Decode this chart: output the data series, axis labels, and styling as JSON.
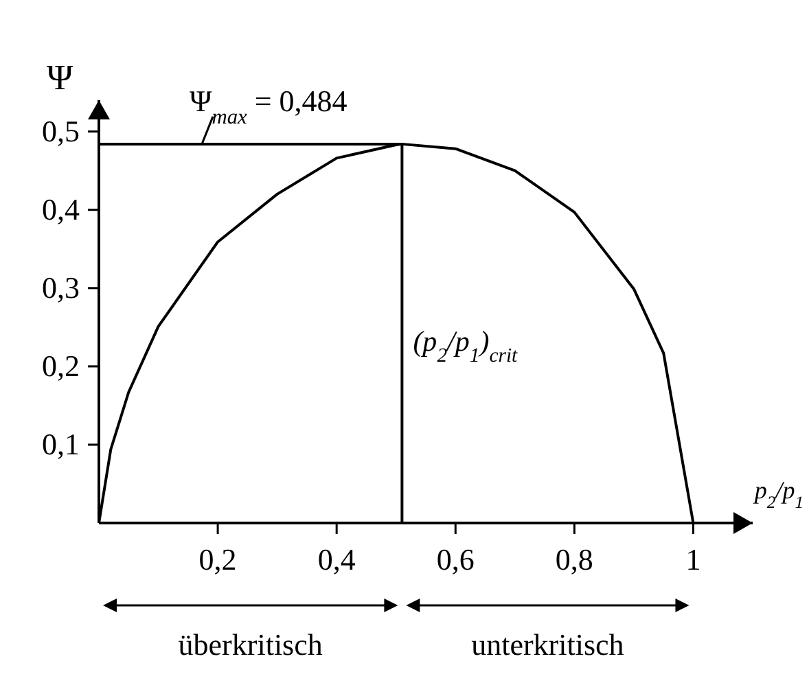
{
  "chart_data": {
    "type": "line",
    "ylabel": "Ψ",
    "xlabel": "p$_{2}$/p$_{1}$",
    "x": [
      0,
      0.02,
      0.05,
      0.1,
      0.2,
      0.3,
      0.4,
      0.5,
      0.51,
      0.6,
      0.7,
      0.8,
      0.9,
      0.95,
      1
    ],
    "series": [
      {
        "color": "#000000",
        "values": [
          0,
          0.094,
          0.167,
          0.251,
          0.359,
          0.42,
          0.466,
          0.483,
          0.484,
          0.478,
          0.45,
          0.397,
          0.299,
          0.217,
          0
        ]
      }
    ],
    "xlim": [
      0,
      1.1
    ],
    "ylim": [
      0,
      0.54
    ],
    "xticks": [
      {
        "value": 0.2,
        "label": "0,2"
      },
      {
        "value": 0.4,
        "label": "0,4"
      },
      {
        "value": 0.6,
        "label": "0,6"
      },
      {
        "value": 0.8,
        "label": "0,8"
      },
      1
    ],
    "yticks": [
      {
        "value": 0.1,
        "label": "0,1"
      },
      {
        "value": 0.2,
        "label": "0,2"
      },
      {
        "value": 0.3,
        "label": "0,3"
      },
      {
        "value": 0.4,
        "label": "0,4"
      },
      {
        "value": 0.5,
        "label": "0,5"
      }
    ],
    "ref_lines": [
      {
        "axis": "y",
        "value": 0.484,
        "label": "Ψ$_{max}$ = 0,484"
      },
      {
        "axis": "x",
        "value": 0.51,
        "label": "(p$_{2}$/p$_{1}$)$_{crit}$"
      }
    ],
    "annotations": [
      "überkritisch",
      "unterkritisch"
    ],
    "grid": false,
    "marker": "none",
    "line_style": "solid"
  }
}
